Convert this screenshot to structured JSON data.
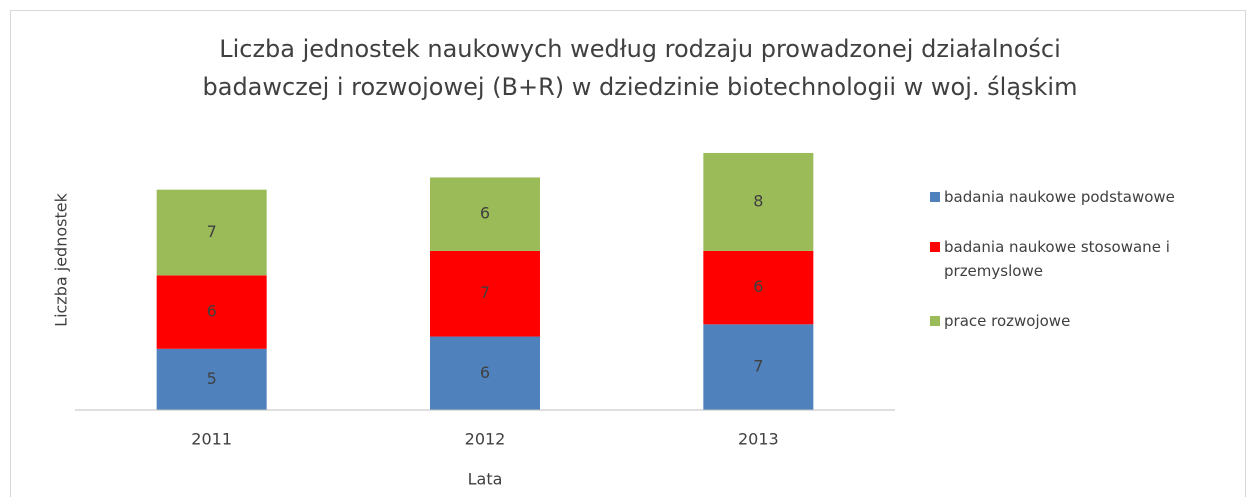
{
  "chart_data": {
    "type": "bar",
    "stacked": true,
    "title": "Liczba jednostek naukowych według rodzaju prowadzonej działalności badawczej i rozwojowej (B+R) w dziedzinie biotechnologii w woj. śląskim",
    "x_label": "Lata",
    "y_label": "Liczba jednostek",
    "categories": [
      "2011",
      "2012",
      "2013"
    ],
    "series": [
      {
        "name": "badania naukowe podstawowe",
        "color": "#4f81bd",
        "values": [
          5,
          6,
          7
        ]
      },
      {
        "name": "badania naukowe stosowane i przemyslowe",
        "color": "#ff0000",
        "values": [
          6,
          7,
          6
        ]
      },
      {
        "name": "prace rozwojowe",
        "color": "#9bbb59",
        "values": [
          7,
          6,
          8
        ]
      }
    ],
    "ylim": [
      0,
      25
    ],
    "legend": "right"
  }
}
